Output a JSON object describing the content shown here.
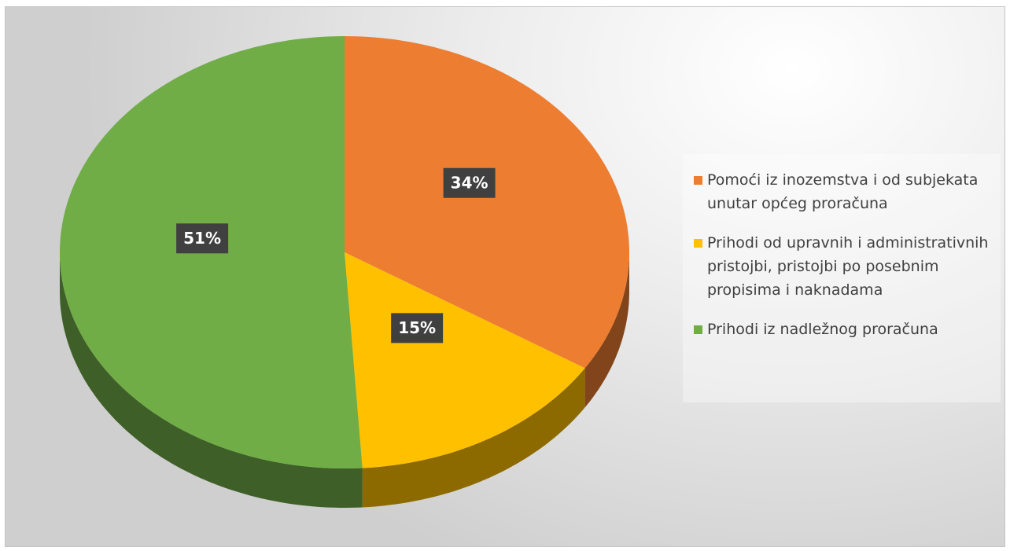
{
  "chart_data": {
    "type": "pie",
    "categories": [
      "Pomoći iz inozemstva i od subjekata unutar općeg proračuna",
      "Prihodi od upravnih i administrativnih pristojbi, pristojbi po posebnim propisima i naknadama",
      "Prihodi iz nadležnog proračuna"
    ],
    "values": [
      34,
      15,
      51
    ],
    "value_labels": [
      "34%",
      "15%",
      "51%"
    ],
    "colors": [
      "#ed7d31",
      "#ffc000",
      "#70ad47"
    ],
    "legend": "right"
  }
}
